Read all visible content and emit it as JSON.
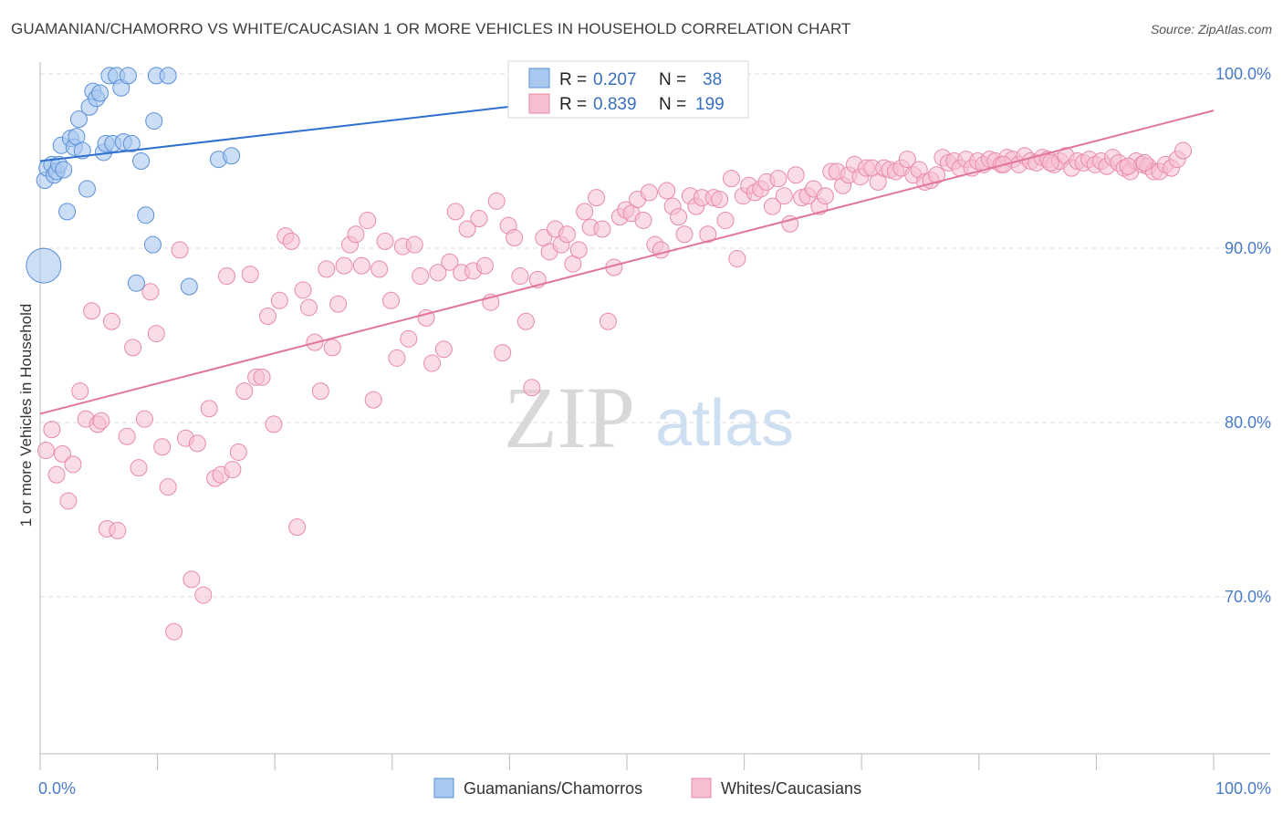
{
  "title": "GUAMANIAN/CHAMORRO VS WHITE/CAUCASIAN 1 OR MORE VEHICLES IN HOUSEHOLD CORRELATION CHART",
  "source": "Source: ZipAtlas.com",
  "watermark": {
    "zip": "ZIP",
    "atlas": "atlas"
  },
  "colors": {
    "blue_fill": "#a8c8f0",
    "blue_stroke": "#5a8fd8",
    "blue_line": "#2f6fd0",
    "pink_fill": "#f6bfd0",
    "pink_stroke": "#e88aa8",
    "pink_line": "#e2759b",
    "tick_text": "#4a7cc9",
    "grid": "#dcdcdc"
  },
  "stats_box": {
    "rows": [
      {
        "r_label": "R =",
        "r_value": "0.207",
        "n_label": "N =",
        "n_value": "38"
      },
      {
        "r_label": "R =",
        "r_value": "0.839",
        "n_label": "N =",
        "n_value": "199"
      }
    ]
  },
  "chart_data": {
    "type": "scatter",
    "title": "GUAMANIAN/CHAMORRO VS WHITE/CAUCASIAN 1 OR MORE VEHICLES IN HOUSEHOLD CORRELATION CHART",
    "xlabel": "",
    "ylabel": "1 or more Vehicles in Household",
    "x_tick_labels": [
      "0.0%",
      "100.0%"
    ],
    "y_tick_labels": [
      "70.0%",
      "80.0%",
      "90.0%",
      "100.0%"
    ],
    "y_ticks": [
      70,
      80,
      90,
      100
    ],
    "xlim": [
      0,
      100
    ],
    "ylim": [
      60.5,
      101.5
    ],
    "grid": true,
    "legend_position": "bottom-center",
    "series": [
      {
        "name": "Guamanians/Chamorros",
        "color": "blue",
        "trend": {
          "x": [
            0,
            50
          ],
          "y": [
            95.0,
            98.9
          ]
        },
        "points": [
          [
            0.4,
            93.9
          ],
          [
            0.6,
            94.6
          ],
          [
            1.0,
            94.8
          ],
          [
            1.2,
            94.2
          ],
          [
            1.4,
            94.4
          ],
          [
            1.6,
            94.8
          ],
          [
            1.8,
            95.9
          ],
          [
            2.0,
            94.5
          ],
          [
            2.3,
            92.1
          ],
          [
            2.6,
            96.3
          ],
          [
            2.9,
            95.8
          ],
          [
            3.1,
            96.4
          ],
          [
            3.3,
            97.4
          ],
          [
            3.6,
            95.6
          ],
          [
            4.0,
            93.4
          ],
          [
            4.2,
            98.1
          ],
          [
            4.5,
            99.0
          ],
          [
            4.8,
            98.6
          ],
          [
            5.1,
            98.9
          ],
          [
            5.4,
            95.5
          ],
          [
            5.6,
            96.0
          ],
          [
            5.9,
            99.9
          ],
          [
            6.2,
            96.0
          ],
          [
            6.5,
            99.9
          ],
          [
            6.9,
            99.2
          ],
          [
            7.1,
            96.1
          ],
          [
            7.5,
            99.9
          ],
          [
            7.8,
            96.0
          ],
          [
            8.2,
            88.0
          ],
          [
            8.6,
            95.0
          ],
          [
            9.0,
            91.9
          ],
          [
            9.7,
            97.3
          ],
          [
            9.6,
            90.2
          ],
          [
            9.9,
            99.9
          ],
          [
            10.9,
            99.9
          ],
          [
            12.7,
            87.8
          ],
          [
            15.2,
            95.1
          ],
          [
            16.3,
            95.3
          ]
        ],
        "large_point": [
          0.3,
          89.0
        ]
      },
      {
        "name": "Whites/Caucasians",
        "color": "pink",
        "trend": {
          "x": [
            0,
            100
          ],
          "y": [
            80.5,
            97.9
          ]
        },
        "points": [
          [
            0.5,
            78.4
          ],
          [
            1.0,
            79.6
          ],
          [
            1.4,
            77.0
          ],
          [
            1.9,
            78.2
          ],
          [
            2.4,
            75.5
          ],
          [
            2.8,
            77.6
          ],
          [
            3.4,
            81.8
          ],
          [
            3.9,
            80.2
          ],
          [
            4.4,
            86.4
          ],
          [
            4.9,
            79.9
          ],
          [
            5.2,
            80.1
          ],
          [
            5.7,
            73.9
          ],
          [
            6.6,
            73.8
          ],
          [
            6.1,
            85.8
          ],
          [
            7.4,
            79.2
          ],
          [
            7.9,
            84.3
          ],
          [
            8.4,
            77.4
          ],
          [
            8.9,
            80.2
          ],
          [
            9.4,
            87.5
          ],
          [
            9.9,
            85.1
          ],
          [
            10.4,
            78.6
          ],
          [
            10.9,
            76.3
          ],
          [
            11.4,
            68.0
          ],
          [
            11.9,
            89.9
          ],
          [
            12.4,
            79.1
          ],
          [
            12.9,
            71.0
          ],
          [
            13.4,
            78.8
          ],
          [
            13.9,
            70.1
          ],
          [
            14.4,
            80.8
          ],
          [
            14.9,
            76.8
          ],
          [
            15.4,
            77.0
          ],
          [
            15.9,
            88.4
          ],
          [
            16.4,
            77.3
          ],
          [
            16.9,
            78.3
          ],
          [
            17.4,
            81.8
          ],
          [
            17.9,
            88.5
          ],
          [
            18.4,
            82.6
          ],
          [
            18.9,
            82.6
          ],
          [
            19.4,
            86.1
          ],
          [
            19.9,
            79.9
          ],
          [
            20.4,
            87.0
          ],
          [
            20.9,
            90.7
          ],
          [
            21.4,
            90.4
          ],
          [
            21.9,
            74.0
          ],
          [
            22.4,
            87.6
          ],
          [
            22.9,
            86.6
          ],
          [
            23.4,
            84.6
          ],
          [
            23.9,
            81.8
          ],
          [
            24.4,
            88.8
          ],
          [
            24.9,
            84.3
          ],
          [
            25.4,
            86.8
          ],
          [
            25.9,
            89.0
          ],
          [
            26.4,
            90.2
          ],
          [
            26.9,
            90.8
          ],
          [
            27.4,
            89.0
          ],
          [
            27.9,
            91.6
          ],
          [
            28.4,
            81.3
          ],
          [
            28.9,
            88.8
          ],
          [
            29.4,
            90.4
          ],
          [
            29.9,
            87.0
          ],
          [
            30.4,
            83.7
          ],
          [
            30.9,
            90.1
          ],
          [
            31.4,
            84.8
          ],
          [
            31.9,
            90.2
          ],
          [
            32.4,
            88.4
          ],
          [
            32.9,
            86.0
          ],
          [
            33.4,
            83.4
          ],
          [
            33.9,
            88.6
          ],
          [
            34.4,
            84.2
          ],
          [
            34.9,
            89.2
          ],
          [
            35.4,
            92.1
          ],
          [
            35.9,
            88.6
          ],
          [
            36.4,
            91.1
          ],
          [
            36.9,
            88.7
          ],
          [
            37.4,
            91.7
          ],
          [
            37.9,
            89.0
          ],
          [
            38.4,
            86.9
          ],
          [
            38.9,
            92.7
          ],
          [
            39.4,
            84.0
          ],
          [
            39.9,
            91.3
          ],
          [
            40.4,
            90.6
          ],
          [
            40.9,
            88.4
          ],
          [
            41.4,
            85.8
          ],
          [
            41.9,
            82.0
          ],
          [
            42.4,
            88.2
          ],
          [
            42.9,
            90.6
          ],
          [
            43.4,
            89.8
          ],
          [
            43.9,
            91.1
          ],
          [
            44.4,
            90.2
          ],
          [
            44.9,
            90.8
          ],
          [
            45.4,
            89.1
          ],
          [
            45.9,
            89.9
          ],
          [
            46.4,
            92.1
          ],
          [
            46.9,
            91.2
          ],
          [
            47.4,
            92.9
          ],
          [
            47.9,
            91.1
          ],
          [
            48.4,
            85.8
          ],
          [
            48.9,
            88.9
          ],
          [
            49.4,
            91.8
          ],
          [
            49.9,
            92.2
          ],
          [
            50.4,
            92.0
          ],
          [
            50.9,
            92.8
          ],
          [
            51.4,
            91.6
          ],
          [
            51.9,
            93.2
          ],
          [
            52.4,
            90.2
          ],
          [
            52.9,
            89.9
          ],
          [
            53.4,
            93.3
          ],
          [
            53.9,
            92.4
          ],
          [
            54.4,
            91.8
          ],
          [
            54.9,
            90.8
          ],
          [
            55.4,
            93.0
          ],
          [
            55.9,
            92.4
          ],
          [
            56.4,
            92.9
          ],
          [
            56.9,
            90.8
          ],
          [
            57.4,
            92.9
          ],
          [
            57.9,
            92.8
          ],
          [
            58.4,
            91.6
          ],
          [
            58.9,
            94.0
          ],
          [
            59.4,
            89.4
          ],
          [
            59.9,
            93.0
          ],
          [
            60.4,
            93.6
          ],
          [
            60.9,
            93.2
          ],
          [
            61.4,
            93.4
          ],
          [
            61.9,
            93.8
          ],
          [
            62.4,
            92.4
          ],
          [
            62.9,
            94.0
          ],
          [
            63.4,
            93.0
          ],
          [
            63.9,
            91.4
          ],
          [
            64.4,
            94.2
          ],
          [
            64.9,
            92.9
          ],
          [
            65.4,
            93.0
          ],
          [
            65.9,
            93.4
          ],
          [
            66.4,
            92.4
          ],
          [
            66.9,
            93.0
          ],
          [
            67.4,
            94.4
          ],
          [
            67.9,
            94.4
          ],
          [
            68.4,
            93.6
          ],
          [
            68.9,
            94.2
          ],
          [
            69.4,
            94.8
          ],
          [
            69.9,
            94.1
          ],
          [
            70.4,
            94.6
          ],
          [
            70.9,
            94.6
          ],
          [
            71.4,
            93.8
          ],
          [
            71.9,
            94.6
          ],
          [
            72.4,
            94.5
          ],
          [
            72.9,
            94.4
          ],
          [
            73.4,
            94.6
          ],
          [
            73.9,
            95.1
          ],
          [
            74.4,
            94.2
          ],
          [
            74.9,
            94.5
          ],
          [
            75.4,
            93.8
          ],
          [
            75.9,
            93.9
          ],
          [
            76.4,
            94.2
          ],
          [
            76.9,
            95.2
          ],
          [
            77.4,
            94.9
          ],
          [
            77.9,
            95.0
          ],
          [
            78.4,
            94.6
          ],
          [
            78.9,
            95.1
          ],
          [
            79.4,
            94.6
          ],
          [
            79.9,
            95.0
          ],
          [
            80.4,
            94.8
          ],
          [
            80.9,
            95.1
          ],
          [
            81.4,
            95.0
          ],
          [
            81.9,
            94.8
          ],
          [
            82.4,
            95.2
          ],
          [
            82.9,
            95.1
          ],
          [
            83.4,
            94.8
          ],
          [
            83.9,
            95.3
          ],
          [
            84.4,
            95.0
          ],
          [
            84.9,
            94.9
          ],
          [
            85.4,
            95.2
          ],
          [
            85.9,
            95.1
          ],
          [
            86.4,
            94.8
          ],
          [
            86.9,
            95.0
          ],
          [
            87.4,
            95.3
          ],
          [
            87.9,
            94.6
          ],
          [
            88.4,
            95.0
          ],
          [
            88.9,
            94.9
          ],
          [
            89.4,
            95.1
          ],
          [
            89.9,
            94.8
          ],
          [
            90.4,
            95.0
          ],
          [
            90.9,
            94.7
          ],
          [
            91.4,
            95.2
          ],
          [
            91.9,
            94.9
          ],
          [
            92.4,
            94.6
          ],
          [
            92.9,
            94.4
          ],
          [
            93.4,
            95.0
          ],
          [
            93.9,
            94.8
          ],
          [
            94.4,
            94.7
          ],
          [
            94.9,
            94.4
          ],
          [
            95.4,
            94.4
          ],
          [
            95.9,
            94.8
          ],
          [
            96.4,
            94.6
          ],
          [
            96.9,
            95.1
          ],
          [
            97.4,
            95.6
          ],
          [
            94.1,
            94.9
          ],
          [
            92.7,
            94.7
          ],
          [
            86.1,
            94.9
          ],
          [
            82.1,
            94.8
          ]
        ]
      }
    ]
  }
}
